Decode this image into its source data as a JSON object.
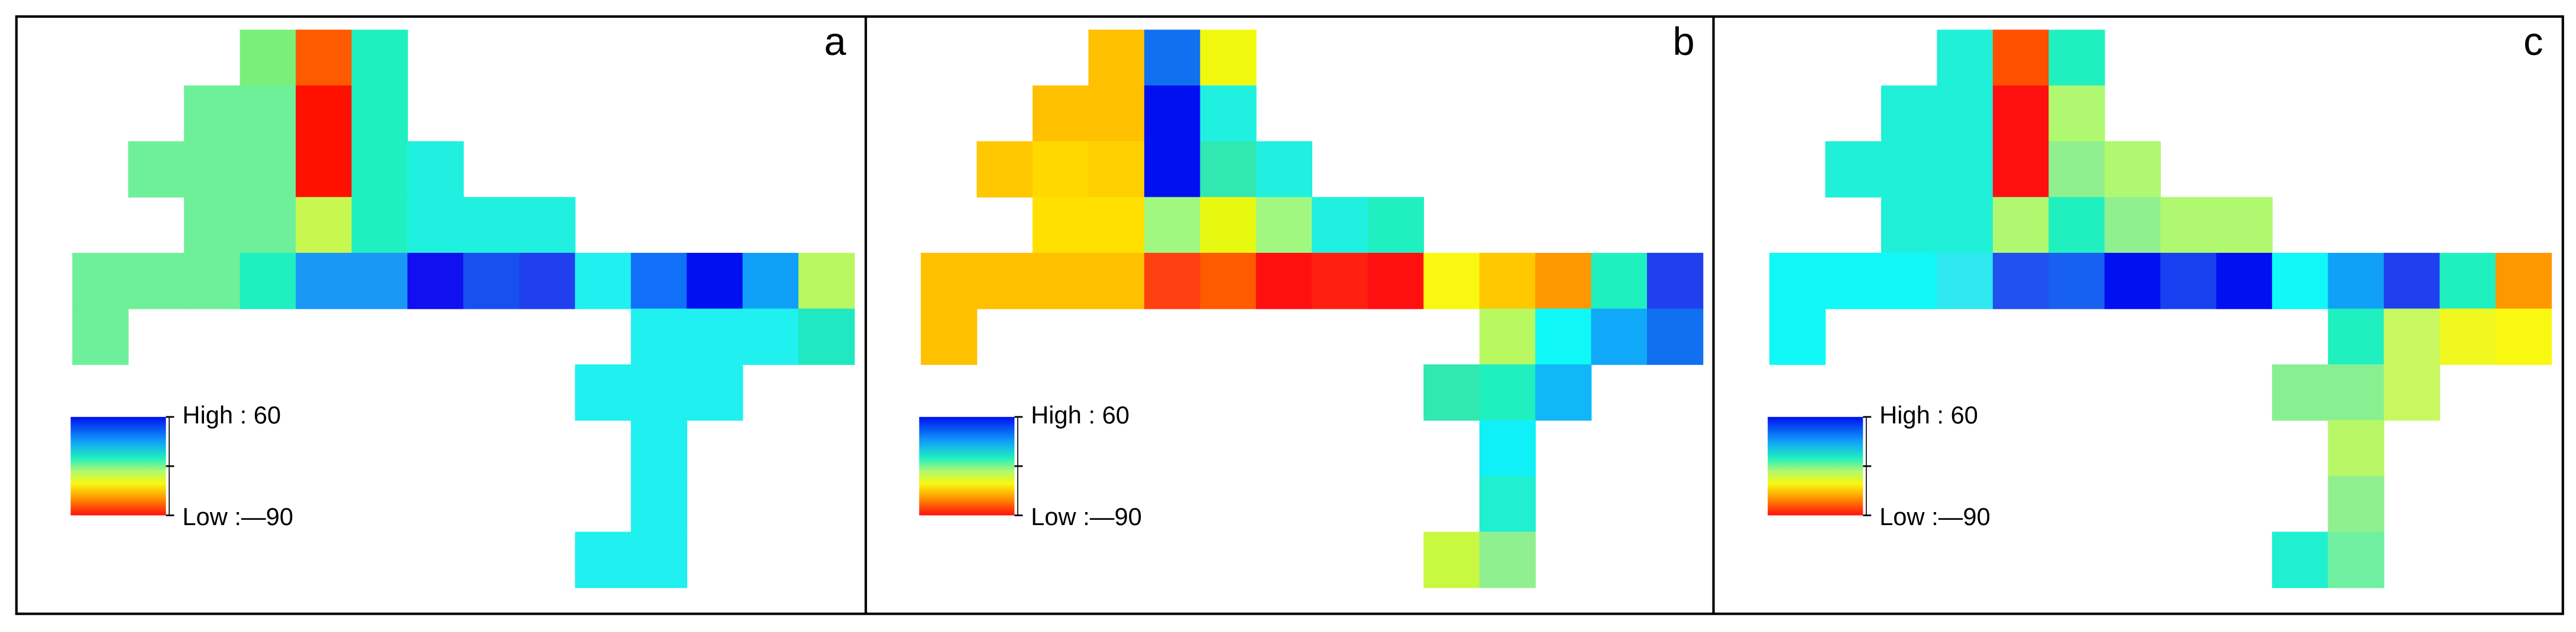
{
  "panels": [
    {
      "label": "a",
      "legend": {
        "high": "High : 60",
        "low": "Low :—90"
      },
      "grid": [
        [
          null,
          null,
          null,
          "#7af07a",
          "#ff5a00",
          "#20f0c0",
          null,
          null,
          null,
          null,
          null,
          null,
          null,
          null
        ],
        [
          null,
          null,
          "#6ef09a",
          "#6ef09a",
          "#ff1000",
          "#20f0c0",
          null,
          null,
          null,
          null,
          null,
          null,
          null,
          null
        ],
        [
          null,
          "#6ef09a",
          "#6ef09a",
          "#6ef09a",
          "#ff1000",
          "#20f0c0",
          "#20f0e0",
          null,
          null,
          null,
          null,
          null,
          null,
          null
        ],
        [
          null,
          null,
          "#6ef09a",
          "#6ef09a",
          "#c8f850",
          "#20f0c0",
          "#20f0e0",
          "#20f0e0",
          "#20f0e0",
          null,
          null,
          null,
          null,
          null
        ],
        [
          "#6ef09a",
          "#6ef09a",
          "#6ef09a",
          "#20f0c0",
          "#1a98f8",
          "#1a98f8",
          "#1010f0",
          "#1850f0",
          "#2040f0",
          "#20f0f0",
          "#1070f8",
          "#0010f0",
          "#10a0f8",
          "#b8f860"
        ],
        [
          "#6ef09a",
          null,
          null,
          null,
          null,
          null,
          null,
          null,
          null,
          null,
          "#20f0f0",
          "#20f0f0",
          "#20f0f0",
          "#20e8c0"
        ],
        [
          null,
          null,
          null,
          null,
          null,
          null,
          null,
          null,
          null,
          "#20f0f0",
          "#20f0f0",
          "#20f0f0",
          null,
          null
        ],
        [
          null,
          null,
          null,
          null,
          null,
          null,
          null,
          null,
          null,
          null,
          "#20f0f0",
          null,
          null,
          null
        ],
        [
          null,
          null,
          null,
          null,
          null,
          null,
          null,
          null,
          null,
          null,
          "#20f0f0",
          null,
          null,
          null
        ],
        [
          null,
          null,
          null,
          null,
          null,
          null,
          null,
          null,
          null,
          "#20f0f0",
          "#20f0f0",
          null,
          null,
          null
        ]
      ]
    },
    {
      "label": "b",
      "legend": {
        "high": "High : 60",
        "low": "Low :—90"
      },
      "grid": [
        [
          null,
          null,
          null,
          "#ffc000",
          "#1070f0",
          "#f0f810",
          null,
          null,
          null,
          null,
          null,
          null,
          null,
          null
        ],
        [
          null,
          null,
          "#ffc000",
          "#ffc000",
          "#0010f0",
          "#20f0e0",
          null,
          null,
          null,
          null,
          null,
          null,
          null,
          null
        ],
        [
          null,
          "#ffc800",
          "#ffd800",
          "#ffd000",
          "#0010f0",
          "#30e8b0",
          "#20f0e0",
          null,
          null,
          null,
          null,
          null,
          null,
          null
        ],
        [
          null,
          null,
          "#ffe000",
          "#ffe000",
          "#a0f880",
          "#e8f810",
          "#a0f880",
          "#20f0e0",
          "#20f0c0",
          null,
          null,
          null,
          null,
          null
        ],
        [
          "#ffc000",
          "#ffc000",
          "#ffc000",
          "#ffc000",
          "#ff4010",
          "#ff5a00",
          "#ff1010",
          "#ff2010",
          "#ff1010",
          "#f8f810",
          "#ffc800",
          "#ff9800",
          "#20f0c0",
          "#2040f0"
        ],
        [
          "#ffc000",
          null,
          null,
          null,
          null,
          null,
          null,
          null,
          null,
          null,
          "#b8f860",
          "#10f8f8",
          "#10a8f8",
          "#1070f0"
        ],
        [
          null,
          null,
          null,
          null,
          null,
          null,
          null,
          null,
          null,
          "#30e8b0",
          "#20f0c0",
          "#10b8f8",
          null,
          null
        ],
        [
          null,
          null,
          null,
          null,
          null,
          null,
          null,
          null,
          null,
          null,
          "#10f0f8",
          null,
          null,
          null
        ],
        [
          null,
          null,
          null,
          null,
          null,
          null,
          null,
          null,
          null,
          null,
          "#20f0d0",
          null,
          null,
          null
        ],
        [
          null,
          null,
          null,
          null,
          null,
          null,
          null,
          null,
          null,
          "#c8f840",
          "#90f090",
          null,
          null,
          null
        ]
      ]
    },
    {
      "label": "c",
      "legend": {
        "high": "High : 60",
        "low": "Low :—90"
      },
      "grid": [
        [
          null,
          null,
          null,
          "#20f0d8",
          "#ff5000",
          "#20f0c0",
          null,
          null,
          null,
          null,
          null,
          null,
          null,
          null
        ],
        [
          null,
          null,
          "#20f0d8",
          "#20f0d8",
          "#ff1010",
          "#b0f870",
          null,
          null,
          null,
          null,
          null,
          null,
          null,
          null
        ],
        [
          null,
          "#20f0d8",
          "#20f0d8",
          "#20f0d8",
          "#ff1010",
          "#90f090",
          "#b0f870",
          null,
          null,
          null,
          null,
          null,
          null,
          null
        ],
        [
          null,
          null,
          "#20f0d8",
          "#20f0d8",
          "#b0f870",
          "#20f0c0",
          "#90f090",
          "#b0f870",
          "#b0f870",
          null,
          null,
          null,
          null,
          null
        ],
        [
          "#10f8f8",
          "#10f8f8",
          "#10f8f8",
          "#30e8f0",
          "#2050f0",
          "#1860f0",
          "#0010f0",
          "#1840f0",
          "#0010f0",
          "#10f8f8",
          "#10a0f8",
          "#2040f0",
          "#20f0c0",
          "#ff9800"
        ],
        [
          "#10f8f8",
          null,
          null,
          null,
          null,
          null,
          null,
          null,
          null,
          null,
          "#20f0c0",
          "#c8f860",
          "#f0f820",
          "#f8f810"
        ],
        [
          null,
          null,
          null,
          null,
          null,
          null,
          null,
          null,
          null,
          "#88f090",
          "#88f090",
          "#c8f860",
          null,
          null
        ],
        [
          null,
          null,
          null,
          null,
          null,
          null,
          null,
          null,
          null,
          null,
          "#b8f868",
          null,
          null,
          null
        ],
        [
          null,
          null,
          null,
          null,
          null,
          null,
          null,
          null,
          null,
          null,
          "#90f090",
          null,
          null,
          null
        ],
        [
          null,
          null,
          null,
          null,
          null,
          null,
          null,
          null,
          null,
          "#20f0d0",
          "#70f0a0",
          null,
          null,
          null
        ]
      ]
    }
  ]
}
